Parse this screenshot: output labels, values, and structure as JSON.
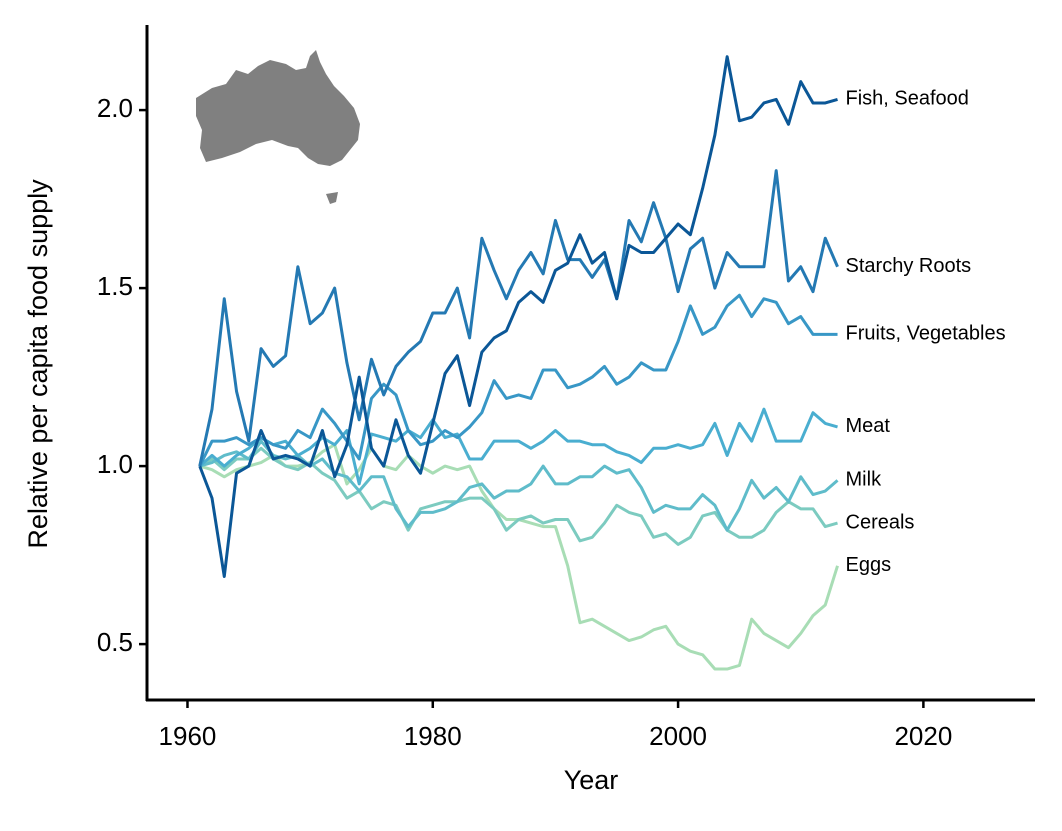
{
  "chart_data": {
    "type": "line",
    "xlabel": "Year",
    "ylabel": "Relative per capita food supply",
    "x": [
      1961,
      1962,
      1963,
      1964,
      1965,
      1966,
      1967,
      1968,
      1969,
      1970,
      1971,
      1972,
      1973,
      1974,
      1975,
      1976,
      1977,
      1978,
      1979,
      1980,
      1981,
      1982,
      1983,
      1984,
      1985,
      1986,
      1987,
      1988,
      1989,
      1990,
      1991,
      1992,
      1993,
      1994,
      1995,
      1996,
      1997,
      1998,
      1999,
      2000,
      2001,
      2002,
      2003,
      2004,
      2005,
      2006,
      2007,
      2008,
      2009,
      2010,
      2011,
      2012,
      2013
    ],
    "xlim": [
      1956.7,
      2029.1
    ],
    "xticks": [
      1960,
      1980,
      2000,
      2020
    ],
    "ylim": [
      0.343,
      2.239
    ],
    "yticks": [
      0.5,
      {
        "value": 1,
        "label": "1.0"
      },
      1.5,
      {
        "value": 2,
        "label": "2.0"
      }
    ],
    "series": [
      {
        "name": "Eggs",
        "color": "#a8ddb5",
        "values": [
          1.0,
          0.99,
          0.97,
          0.99,
          1.0,
          1.01,
          1.03,
          1.0,
          1.0,
          1.01,
          1.04,
          1.06,
          0.95,
          0.99,
          1.05,
          1.0,
          0.99,
          1.03,
          1.0,
          0.98,
          1.0,
          0.99,
          1.0,
          0.93,
          0.88,
          0.85,
          0.85,
          0.84,
          0.83,
          0.83,
          0.72,
          0.56,
          0.57,
          0.55,
          0.53,
          0.51,
          0.52,
          0.54,
          0.55,
          0.5,
          0.48,
          0.47,
          0.43,
          0.43,
          0.44,
          0.57,
          0.53,
          0.51,
          0.49,
          0.53,
          0.58,
          0.61,
          0.72
        ]
      },
      {
        "name": "Cereals",
        "color": "#7ccbc0",
        "values": [
          1.0,
          1.02,
          0.99,
          1.02,
          1.02,
          1.05,
          1.02,
          1.0,
          0.99,
          1.01,
          0.98,
          0.96,
          0.91,
          0.93,
          0.88,
          0.9,
          0.89,
          0.82,
          0.88,
          0.89,
          0.9,
          0.9,
          0.91,
          0.91,
          0.88,
          0.82,
          0.85,
          0.86,
          0.84,
          0.85,
          0.85,
          0.79,
          0.8,
          0.84,
          0.89,
          0.87,
          0.86,
          0.8,
          0.81,
          0.78,
          0.8,
          0.86,
          0.87,
          0.82,
          0.8,
          0.8,
          0.82,
          0.87,
          0.9,
          0.88,
          0.88,
          0.83,
          0.84
        ]
      },
      {
        "name": "Milk",
        "color": "#5fbcca",
        "values": [
          1.0,
          1.01,
          1.03,
          1.04,
          1.02,
          1.07,
          1.03,
          1.02,
          1.03,
          1.0,
          1.02,
          0.98,
          0.97,
          0.93,
          0.97,
          0.97,
          0.88,
          0.83,
          0.87,
          0.87,
          0.88,
          0.9,
          0.94,
          0.95,
          0.91,
          0.93,
          0.93,
          0.95,
          1.0,
          0.95,
          0.95,
          0.97,
          0.97,
          1.0,
          0.98,
          0.99,
          0.94,
          0.87,
          0.89,
          0.88,
          0.88,
          0.92,
          0.89,
          0.82,
          0.88,
          0.96,
          0.91,
          0.94,
          0.9,
          0.97,
          0.92,
          0.93,
          0.96
        ]
      },
      {
        "name": "Meat",
        "color": "#4aaed0",
        "values": [
          1.0,
          1.03,
          1.0,
          1.03,
          1.05,
          1.08,
          1.06,
          1.07,
          1.03,
          1.05,
          1.08,
          1.06,
          1.1,
          0.95,
          1.09,
          1.08,
          1.07,
          1.1,
          1.08,
          1.13,
          1.08,
          1.09,
          1.02,
          1.02,
          1.07,
          1.07,
          1.07,
          1.05,
          1.07,
          1.1,
          1.07,
          1.07,
          1.06,
          1.06,
          1.04,
          1.03,
          1.01,
          1.05,
          1.05,
          1.06,
          1.05,
          1.06,
          1.12,
          1.03,
          1.12,
          1.07,
          1.16,
          1.07,
          1.07,
          1.07,
          1.15,
          1.12,
          1.11
        ]
      },
      {
        "name": "Fruits, Vegetables",
        "color": "#3897c6",
        "values": [
          1.0,
          1.07,
          1.07,
          1.08,
          1.06,
          1.08,
          1.06,
          1.05,
          1.1,
          1.08,
          1.16,
          1.12,
          1.07,
          1.02,
          1.19,
          1.23,
          1.2,
          1.1,
          1.06,
          1.07,
          1.1,
          1.08,
          1.11,
          1.15,
          1.24,
          1.19,
          1.2,
          1.19,
          1.27,
          1.27,
          1.22,
          1.23,
          1.25,
          1.28,
          1.23,
          1.25,
          1.29,
          1.27,
          1.27,
          1.35,
          1.45,
          1.37,
          1.39,
          1.45,
          1.48,
          1.42,
          1.47,
          1.46,
          1.4,
          1.42,
          1.37,
          1.37,
          1.37
        ]
      },
      {
        "name": "Starchy Roots",
        "color": "#2479b3",
        "values": [
          1.0,
          1.16,
          1.47,
          1.21,
          1.07,
          1.33,
          1.28,
          1.31,
          1.56,
          1.4,
          1.43,
          1.5,
          1.29,
          1.13,
          1.3,
          1.2,
          1.28,
          1.32,
          1.35,
          1.43,
          1.43,
          1.5,
          1.36,
          1.64,
          1.55,
          1.47,
          1.55,
          1.6,
          1.54,
          1.69,
          1.58,
          1.58,
          1.53,
          1.58,
          1.47,
          1.69,
          1.63,
          1.74,
          1.64,
          1.49,
          1.61,
          1.64,
          1.5,
          1.6,
          1.56,
          1.56,
          1.56,
          1.83,
          1.52,
          1.56,
          1.49,
          1.64,
          1.56
        ]
      },
      {
        "name": "Fish, Seafood",
        "color": "#0b5797",
        "values": [
          1.0,
          0.91,
          0.69,
          0.98,
          1.0,
          1.1,
          1.02,
          1.03,
          1.02,
          1.0,
          1.1,
          0.97,
          1.06,
          1.25,
          1.05,
          1.0,
          1.13,
          1.03,
          0.98,
          1.12,
          1.26,
          1.31,
          1.17,
          1.32,
          1.36,
          1.38,
          1.46,
          1.49,
          1.46,
          1.55,
          1.57,
          1.65,
          1.57,
          1.6,
          1.47,
          1.62,
          1.6,
          1.6,
          1.64,
          1.68,
          1.65,
          1.78,
          1.93,
          2.15,
          1.97,
          1.98,
          2.02,
          2.03,
          1.96,
          2.08,
          2.02,
          2.02,
          2.03
        ]
      }
    ]
  }
}
